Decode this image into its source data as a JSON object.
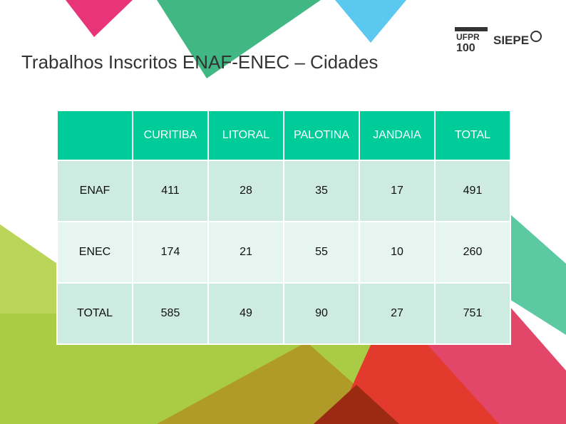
{
  "title": "Trabalhos Inscritos ENAF-ENEC – Cidades",
  "logo": {
    "ufpr_line1": "UFPR",
    "ufpr_line2": "100",
    "siepe": "SIEPE"
  },
  "table": {
    "columns": [
      "",
      "CURITIBA",
      "LITORAL",
      "PALOTINA",
      "JANDAIA",
      "TOTAL"
    ],
    "rows": [
      {
        "label": "ENAF",
        "values": [
          "411",
          "28",
          "35",
          "17",
          "491"
        ]
      },
      {
        "label": "ENEC",
        "values": [
          "174",
          "21",
          "55",
          "10",
          "260"
        ]
      },
      {
        "label": "TOTAL",
        "values": [
          "585",
          "49",
          "90",
          "27",
          "751"
        ]
      }
    ]
  },
  "colors": {
    "header": "#00cc99",
    "row_dark": "#cdebe0",
    "row_light": "#e6f5ef",
    "pink": "#e8357a",
    "green": "#41b883",
    "cyan": "#5bc8ef",
    "lime": "#a9cb45",
    "olive": "#b09a28",
    "red": "#e23a2c"
  }
}
